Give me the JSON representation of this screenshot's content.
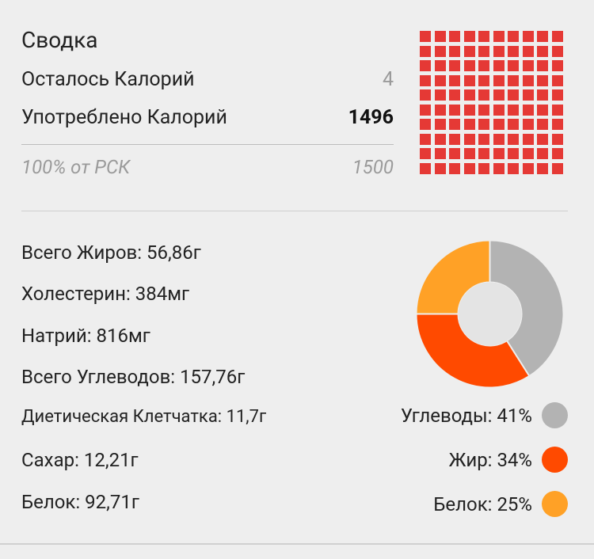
{
  "summary": {
    "title": "Сводка",
    "remaining_label": "Осталось Калорий",
    "remaining_value": "4",
    "consumed_label": "Употреблено Калорий",
    "consumed_value": "1496",
    "rsk_label": "100% от РСК",
    "rsk_value": "1500"
  },
  "calorie_grid": {
    "filled_cells": 100,
    "total_cells": 100,
    "color": "#e53935"
  },
  "nutrients": [
    "Всего Жиров: 56,86г",
    "Холестерин: 384мг",
    "Натрий: 816мг",
    "Всего Углеводов: 157,76г",
    "Диетическая Клетчатка: 11,7г",
    "Сахар: 12,21г",
    "Белок: 92,71г"
  ],
  "macros": {
    "legend": [
      {
        "label": "Углеводы: 41%",
        "color": "#b3b3b3"
      },
      {
        "label": "Жир: 34%",
        "color": "#ff4a00"
      },
      {
        "label": "Белок: 25%",
        "color": "#ffa126"
      }
    ]
  },
  "chart_data": {
    "type": "pie",
    "categories": [
      "Углеводы",
      "Жир",
      "Белок"
    ],
    "values": [
      41,
      34,
      25
    ],
    "colors": [
      "#b3b3b3",
      "#ff4a00",
      "#ffa126"
    ],
    "donut": true,
    "title": "",
    "legend_position": "bottom-right"
  }
}
